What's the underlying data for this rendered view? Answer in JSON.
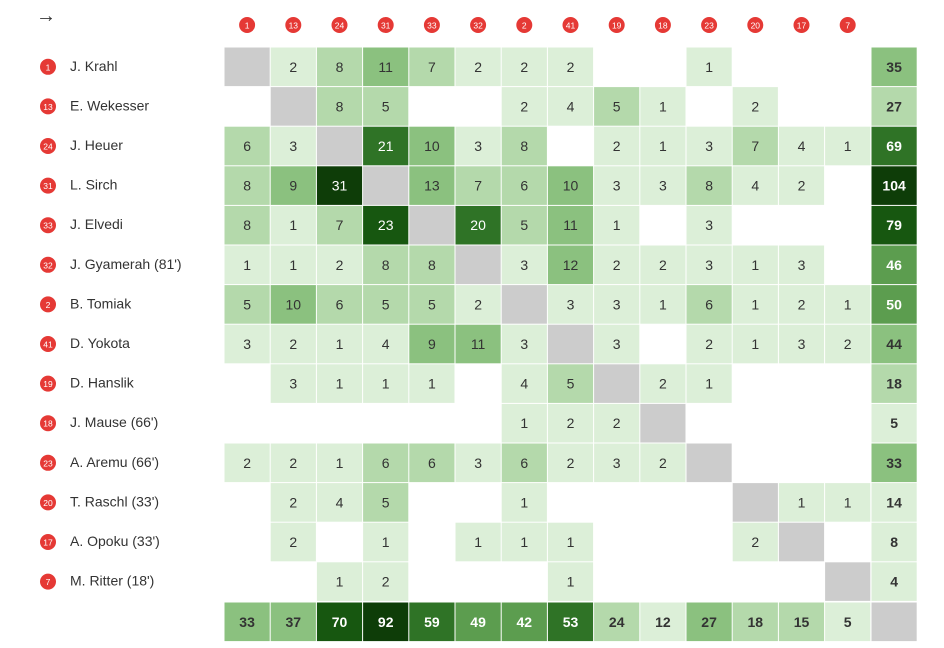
{
  "direction_arrow": "→",
  "colors": {
    "badge": "#e53935",
    "diagonal": "#cccccc",
    "scale": [
      "#ffffff",
      "#dcefd8",
      "#b4d9ab",
      "#8bc17f",
      "#5c9d4f",
      "#2f7326",
      "#175710",
      "#0e3d08"
    ]
  },
  "chart_data": {
    "type": "heatmap",
    "players": [
      {
        "number": "1",
        "name": "J. Krahl"
      },
      {
        "number": "13",
        "name": "E. Wekesser"
      },
      {
        "number": "24",
        "name": "J. Heuer"
      },
      {
        "number": "31",
        "name": "L. Sirch"
      },
      {
        "number": "33",
        "name": "J. Elvedi"
      },
      {
        "number": "32",
        "name": "J. Gyamerah (81')"
      },
      {
        "number": "2",
        "name": "B. Tomiak"
      },
      {
        "number": "41",
        "name": "D. Yokota"
      },
      {
        "number": "19",
        "name": "D. Hanslik"
      },
      {
        "number": "18",
        "name": "J. Mause (66')"
      },
      {
        "number": "23",
        "name": "A. Aremu (66')"
      },
      {
        "number": "20",
        "name": "T. Raschl (33')"
      },
      {
        "number": "17",
        "name": "A. Opoku (33')"
      },
      {
        "number": "7",
        "name": "M. Ritter (18')"
      }
    ],
    "matrix": [
      [
        null,
        2,
        8,
        11,
        7,
        2,
        2,
        2,
        null,
        null,
        1,
        null,
        null,
        null
      ],
      [
        null,
        null,
        8,
        5,
        null,
        null,
        2,
        4,
        5,
        1,
        null,
        2,
        null,
        null
      ],
      [
        6,
        3,
        null,
        21,
        10,
        3,
        8,
        null,
        2,
        1,
        3,
        7,
        4,
        1
      ],
      [
        8,
        9,
        31,
        null,
        13,
        7,
        6,
        10,
        3,
        3,
        8,
        4,
        2,
        null
      ],
      [
        8,
        1,
        7,
        23,
        null,
        20,
        5,
        11,
        1,
        null,
        3,
        null,
        null,
        null
      ],
      [
        1,
        1,
        2,
        8,
        8,
        null,
        3,
        12,
        2,
        2,
        3,
        1,
        3,
        null
      ],
      [
        5,
        10,
        6,
        5,
        5,
        2,
        null,
        3,
        3,
        1,
        6,
        1,
        2,
        1
      ],
      [
        3,
        2,
        1,
        4,
        9,
        11,
        3,
        null,
        3,
        null,
        2,
        1,
        3,
        2
      ],
      [
        null,
        3,
        1,
        1,
        1,
        null,
        4,
        5,
        null,
        2,
        1,
        null,
        null,
        null
      ],
      [
        null,
        null,
        null,
        null,
        null,
        null,
        1,
        2,
        2,
        null,
        null,
        null,
        null,
        null
      ],
      [
        2,
        2,
        1,
        6,
        6,
        3,
        6,
        2,
        3,
        2,
        null,
        null,
        null,
        null
      ],
      [
        null,
        2,
        4,
        5,
        null,
        null,
        1,
        null,
        null,
        null,
        null,
        null,
        1,
        1
      ],
      [
        null,
        2,
        null,
        1,
        null,
        1,
        1,
        1,
        null,
        null,
        null,
        2,
        null,
        null
      ],
      [
        null,
        null,
        1,
        2,
        null,
        null,
        null,
        1,
        null,
        null,
        null,
        null,
        null,
        null
      ]
    ],
    "row_totals": [
      35,
      27,
      69,
      104,
      79,
      46,
      50,
      44,
      18,
      5,
      33,
      14,
      8,
      4
    ],
    "column_totals": [
      33,
      37,
      70,
      92,
      59,
      49,
      42,
      53,
      24,
      12,
      27,
      18,
      15,
      5
    ]
  }
}
